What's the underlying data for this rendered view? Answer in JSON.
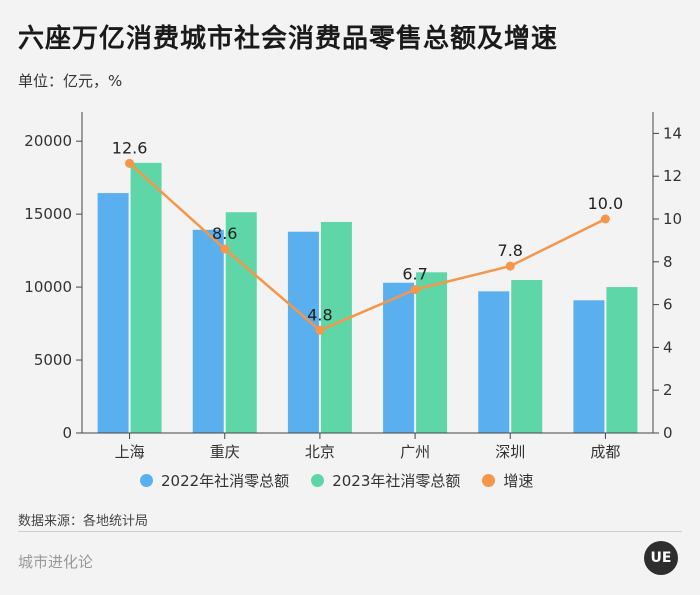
{
  "header": {
    "title": "六座万亿消费城市社会消费品零售总额及增速",
    "unit": "单位：亿元，%"
  },
  "chart_data": {
    "type": "bar",
    "categories": [
      "上海",
      "重庆",
      "北京",
      "广州",
      "深圳",
      "成都"
    ],
    "series": [
      {
        "name": "2022年社消零总额",
        "kind": "bar",
        "axis": "left",
        "color": "#5aafef",
        "values": [
          16442,
          13926,
          13794,
          10298,
          9708,
          9097
        ]
      },
      {
        "name": "2023年社消零总额",
        "kind": "bar",
        "axis": "left",
        "color": "#5fd6a7",
        "values": [
          18516,
          15131,
          14462,
          11013,
          10487,
          10001
        ]
      },
      {
        "name": "增速",
        "kind": "line",
        "axis": "right",
        "color": "#f5964a",
        "values": [
          12.6,
          8.6,
          4.8,
          6.7,
          7.8,
          10.0
        ],
        "labels": [
          "12.6",
          "8.6",
          "4.8",
          "6.7",
          "7.8",
          "10.0"
        ]
      }
    ],
    "y_left": {
      "range": [
        0,
        22000
      ],
      "ticks": [
        0,
        5000,
        10000,
        15000,
        20000
      ]
    },
    "y_right": {
      "range": [
        0,
        15
      ],
      "ticks": [
        0,
        2,
        4,
        6,
        8,
        10,
        12,
        14
      ]
    },
    "legend": "bottom"
  },
  "footer": {
    "source": "数据来源：各地统计局",
    "brand": "城市进化论",
    "logo_text": "UE"
  }
}
